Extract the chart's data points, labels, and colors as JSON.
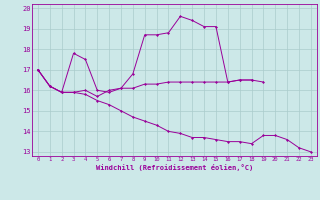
{
  "xlabel": "Windchill (Refroidissement éolien,°C)",
  "background_color": "#cce8e8",
  "line_color": "#990099",
  "grid_color": "#aacccc",
  "line1_x": [
    0,
    1,
    2,
    3,
    4,
    5,
    6,
    7,
    8,
    9,
    10,
    11,
    12,
    13,
    14,
    15,
    16,
    17,
    18,
    19,
    20,
    21,
    22,
    23
  ],
  "line1_y": [
    17.0,
    16.2,
    15.9,
    17.8,
    17.5,
    16.0,
    15.9,
    16.1,
    16.8,
    18.7,
    18.7,
    18.8,
    19.6,
    19.4,
    19.1,
    19.1,
    16.4,
    16.5,
    16.5,
    16.4,
    null,
    null,
    null,
    null
  ],
  "line2_x": [
    0,
    1,
    2,
    3,
    4,
    5,
    6,
    7,
    8,
    9,
    10,
    11,
    12,
    13,
    14,
    15,
    16,
    17,
    18,
    19,
    20,
    21,
    22,
    23
  ],
  "line2_y": [
    17.0,
    16.2,
    15.9,
    15.9,
    16.0,
    15.7,
    16.0,
    16.1,
    16.1,
    16.3,
    16.3,
    16.4,
    16.4,
    16.4,
    16.4,
    16.4,
    16.4,
    16.5,
    16.5,
    null,
    null,
    null,
    null,
    null
  ],
  "line3_x": [
    0,
    1,
    2,
    3,
    4,
    5,
    6,
    7,
    8,
    9,
    10,
    11,
    12,
    13,
    14,
    15,
    16,
    17,
    18,
    19,
    20,
    21,
    22,
    23
  ],
  "line3_y": [
    17.0,
    16.2,
    15.9,
    15.9,
    15.8,
    15.5,
    15.3,
    15.0,
    14.7,
    14.5,
    14.3,
    14.0,
    13.9,
    13.7,
    13.7,
    13.6,
    13.5,
    13.5,
    13.4,
    13.8,
    13.8,
    13.6,
    13.2,
    13.0
  ],
  "xlim": [
    -0.5,
    23.5
  ],
  "ylim": [
    12.8,
    20.2
  ],
  "xticks": [
    0,
    1,
    2,
    3,
    4,
    5,
    6,
    7,
    8,
    9,
    10,
    11,
    12,
    13,
    14,
    15,
    16,
    17,
    18,
    19,
    20,
    21,
    22,
    23
  ],
  "yticks": [
    13,
    14,
    15,
    16,
    17,
    18,
    19,
    20
  ]
}
